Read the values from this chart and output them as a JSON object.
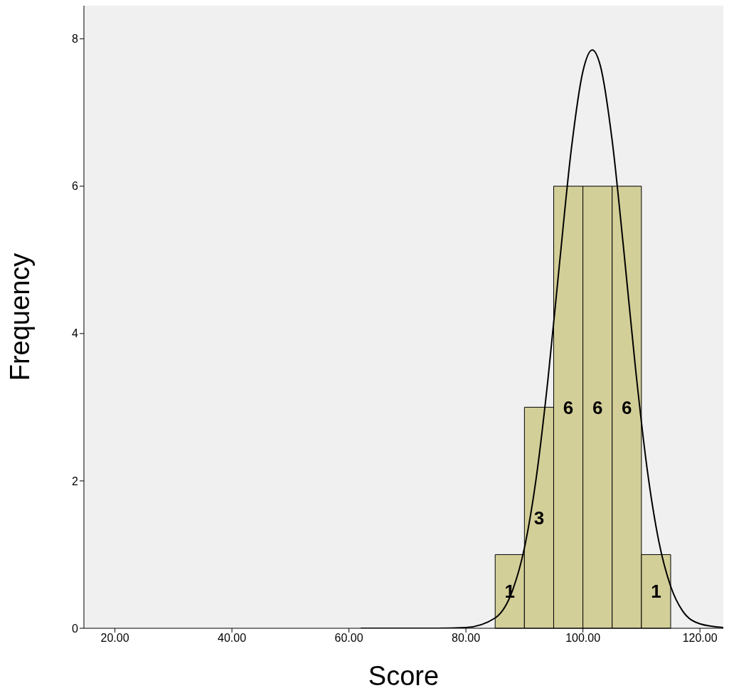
{
  "chart_data": {
    "type": "histogram",
    "xlabel": "Score",
    "ylabel": "Frequency",
    "bins": [
      85,
      90,
      95,
      100,
      105,
      110,
      115
    ],
    "values": [
      1,
      3,
      6,
      6,
      6,
      1
    ],
    "color": "#d3cf98",
    "value_labels": [
      "1",
      "3",
      "6",
      "6",
      "6",
      "1"
    ],
    "series": [
      {
        "type": "line",
        "color": "#000000",
        "x": [
          62,
          70,
          75,
          80,
          85,
          88,
          90,
          92,
          94,
          96,
          98,
          100,
          101.6,
          103,
          105,
          107,
          109,
          111,
          113,
          115,
          117,
          120,
          124
        ],
        "values": [
          0,
          0,
          0,
          0.01,
          0.14,
          0.52,
          1.09,
          2.03,
          3.36,
          4.95,
          6.49,
          7.56,
          7.85,
          7.63,
          6.62,
          5.12,
          3.52,
          2.15,
          1.17,
          0.57,
          0.24,
          0.06,
          0.01
        ]
      }
    ],
    "xlim": [
      14.7,
      124
    ],
    "xticks": [
      {
        "value": 20,
        "label": "20.00"
      },
      {
        "value": 40,
        "label": "40.00"
      },
      {
        "value": 60,
        "label": "60.00"
      },
      {
        "value": 80,
        "label": "80.00"
      },
      {
        "value": 100,
        "label": "100.00"
      },
      {
        "value": 120,
        "label": "120.00"
      }
    ],
    "ylim": [
      0,
      8.45
    ],
    "yticks": [
      0,
      2,
      4,
      6,
      8
    ],
    "grid": false,
    "legend": false,
    "marker": "none"
  }
}
